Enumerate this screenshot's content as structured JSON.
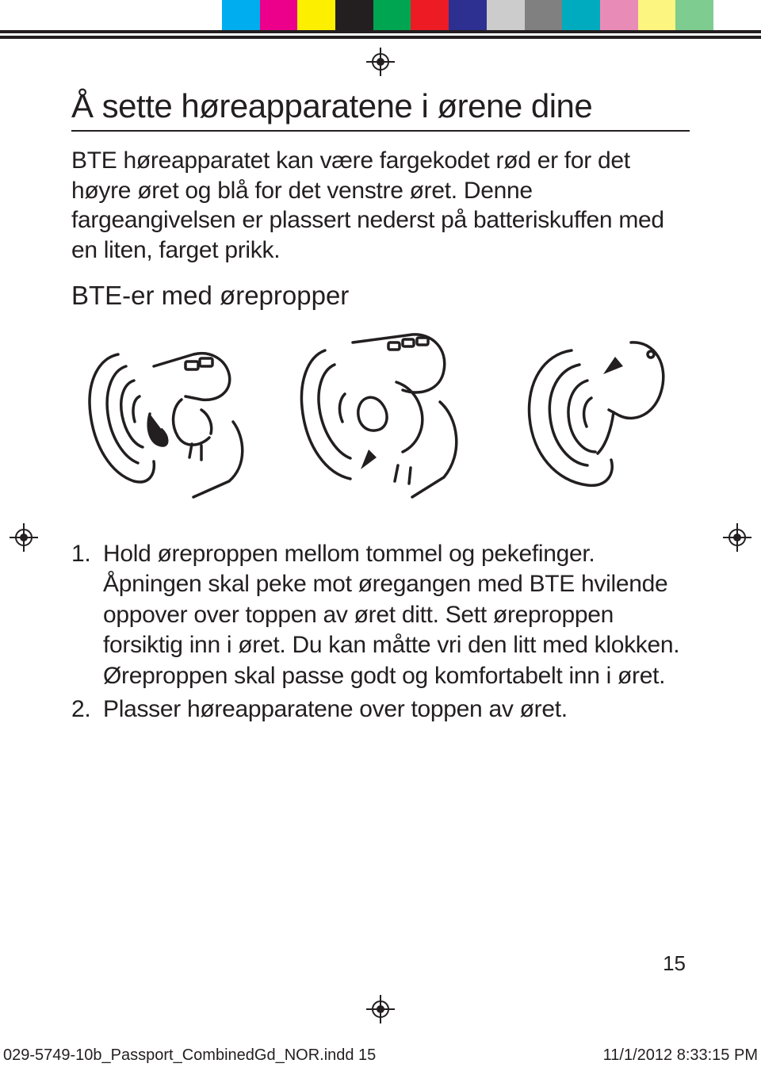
{
  "color_bar": [
    "#00adee",
    "#ec008b",
    "#fcf000",
    "#231f20",
    "#00a551",
    "#ed1b24",
    "#2d3091",
    "#cccccc",
    "#808080",
    "#00abbf",
    "#e98bb7",
    "#fcf57f",
    "#7fcc90"
  ],
  "title": "Å sette høreapparatene i ørene dine",
  "intro": "BTE høreapparatet kan være fargekodet rød er for det høyre øret og blå for det venstre øret. Denne fargeangivelsen er plassert nederst på batteriskuffen med en liten, farget prikk.",
  "subtitle": "BTE-er med ørepropper",
  "steps": [
    {
      "num": "1.",
      "text": "Hold øreproppen mellom tommel og pekefinger. Åpningen skal peke mot øregangen med BTE hvilende oppover over toppen av øret ditt. Sett øreproppen forsiktig inn i øret. Du kan måtte vri den litt med klokken. Øreproppen skal passe godt og komfortabelt inn i øret."
    },
    {
      "num": "2.",
      "text": "Plasser høreapparatene over toppen av øret."
    }
  ],
  "page_number": "15",
  "slug_left": "029-5749-10b_Passport_CombinedGd_NOR.indd   15",
  "slug_right": "11/1/2012   8:33:15 PM"
}
